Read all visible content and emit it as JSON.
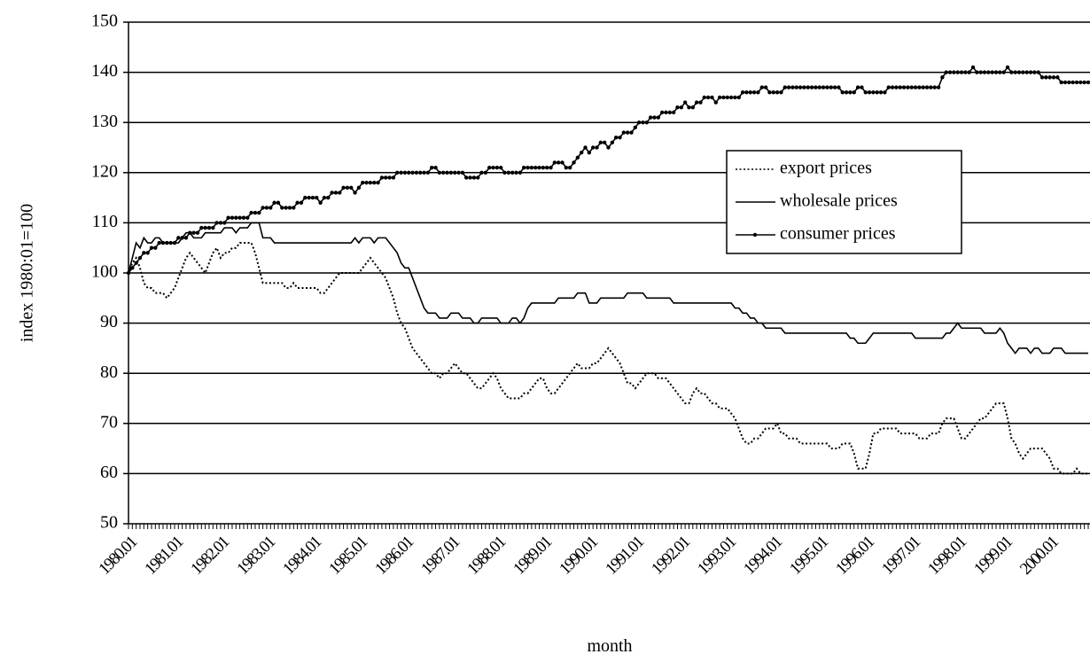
{
  "chart_data": {
    "type": "line",
    "ylabel": "index 1980:01=100",
    "xlabel": "month",
    "categories": [
      "1980.01",
      null,
      null,
      null,
      null,
      null,
      null,
      null,
      null,
      null,
      null,
      null,
      "1981.01",
      null,
      null,
      null,
      null,
      null,
      null,
      null,
      null,
      null,
      null,
      null,
      "1982.01",
      null,
      null,
      null,
      null,
      null,
      null,
      null,
      null,
      null,
      null,
      null,
      "1983.01",
      null,
      null,
      null,
      null,
      null,
      null,
      null,
      null,
      null,
      null,
      null,
      "1984.01",
      null,
      null,
      null,
      null,
      null,
      null,
      null,
      null,
      null,
      null,
      null,
      "1985.01",
      null,
      null,
      null,
      null,
      null,
      null,
      null,
      null,
      null,
      null,
      null,
      "1986.01",
      null,
      null,
      null,
      null,
      null,
      null,
      null,
      null,
      null,
      null,
      null,
      "1987.01",
      null,
      null,
      null,
      null,
      null,
      null,
      null,
      null,
      null,
      null,
      null,
      "1988.01",
      null,
      null,
      null,
      null,
      null,
      null,
      null,
      null,
      null,
      null,
      null,
      "1989.01",
      null,
      null,
      null,
      null,
      null,
      null,
      null,
      null,
      null,
      null,
      null,
      "1990.01",
      null,
      null,
      null,
      null,
      null,
      null,
      null,
      null,
      null,
      null,
      null,
      "1991.01",
      null,
      null,
      null,
      null,
      null,
      null,
      null,
      null,
      null,
      null,
      null,
      "1992.01",
      null,
      null,
      null,
      null,
      null,
      null,
      null,
      null,
      null,
      null,
      null,
      "1993.01",
      null,
      null,
      null,
      null,
      null,
      null,
      null,
      null,
      null,
      null,
      null,
      "1994.01",
      null,
      null,
      null,
      null,
      null,
      null,
      null,
      null,
      null,
      null,
      null,
      "1995.01",
      null,
      null,
      null,
      null,
      null,
      null,
      null,
      null,
      null,
      null,
      null,
      "1996.01",
      null,
      null,
      null,
      null,
      null,
      null,
      null,
      null,
      null,
      null,
      null,
      "1997.01",
      null,
      null,
      null,
      null,
      null,
      null,
      null,
      null,
      null,
      null,
      null,
      "1998.01",
      null,
      null,
      null,
      null,
      null,
      null,
      null,
      null,
      null,
      null,
      null,
      "1999.01",
      null,
      null,
      null,
      null,
      null,
      null,
      null,
      null,
      null,
      null,
      null,
      "2000.01",
      null,
      null,
      null,
      null,
      null,
      null,
      null,
      null,
      null,
      null
    ],
    "series": [
      {
        "name": "export prices",
        "color": "#000000",
        "style": "dotted",
        "values": [
          100,
          102,
          103,
          101,
          98,
          97,
          97,
          96,
          96,
          96,
          95,
          96,
          97,
          99,
          101,
          103,
          104,
          103,
          102,
          101,
          100,
          102,
          104,
          105,
          103,
          104,
          104,
          105,
          105,
          106,
          106,
          106,
          106,
          104,
          101,
          98,
          98,
          98,
          98,
          98,
          98,
          97,
          97,
          98,
          97,
          97,
          97,
          97,
          97,
          97,
          96,
          96,
          97,
          98,
          99,
          100,
          100,
          100,
          100,
          100,
          100,
          101,
          102,
          103,
          102,
          101,
          100,
          99,
          97,
          95,
          92,
          90,
          89,
          87,
          85,
          84,
          83,
          82,
          81,
          80,
          80,
          79,
          80,
          80,
          81,
          82,
          81,
          80,
          80,
          79,
          78,
          77,
          77,
          78,
          79,
          80,
          79,
          77,
          76,
          75,
          75,
          75,
          75,
          76,
          76,
          77,
          78,
          79,
          79,
          77,
          76,
          76,
          77,
          78,
          79,
          80,
          81,
          82,
          81,
          81,
          81,
          82,
          82,
          83,
          84,
          85,
          84,
          83,
          82,
          80,
          78,
          78,
          77,
          78,
          79,
          80,
          80,
          80,
          79,
          79,
          79,
          78,
          77,
          76,
          75,
          74,
          74,
          76,
          77,
          76,
          76,
          75,
          74,
          74,
          73,
          73,
          73,
          72,
          71,
          69,
          67,
          66,
          66,
          67,
          67,
          68,
          69,
          69,
          69,
          70,
          68,
          68,
          67,
          67,
          67,
          66,
          66,
          66,
          66,
          66,
          66,
          66,
          66,
          65,
          65,
          65,
          66,
          66,
          66,
          64,
          61,
          61,
          61,
          64,
          68,
          68,
          69,
          69,
          69,
          69,
          69,
          68,
          68,
          68,
          68,
          68,
          67,
          67,
          67,
          68,
          68,
          68,
          70,
          71,
          71,
          71,
          69,
          67,
          67,
          68,
          69,
          70,
          71,
          71,
          72,
          73,
          74,
          74,
          74,
          71,
          67,
          66,
          64,
          63,
          64,
          65,
          65,
          65,
          65,
          64,
          63,
          61,
          61,
          60,
          60,
          60,
          60,
          61,
          60,
          60,
          60
        ]
      },
      {
        "name": "wholesale prices",
        "color": "#000000",
        "style": "solid",
        "values": [
          100,
          103,
          106,
          105,
          107,
          106,
          106,
          107,
          107,
          106,
          106,
          106,
          106,
          106,
          107,
          108,
          108,
          107,
          107,
          107,
          108,
          108,
          108,
          108,
          108,
          109,
          109,
          109,
          108,
          109,
          109,
          109,
          110,
          110,
          110,
          107,
          107,
          107,
          106,
          106,
          106,
          106,
          106,
          106,
          106,
          106,
          106,
          106,
          106,
          106,
          106,
          106,
          106,
          106,
          106,
          106,
          106,
          106,
          106,
          107,
          106,
          107,
          107,
          107,
          106,
          107,
          107,
          107,
          106,
          105,
          104,
          102,
          101,
          101,
          99,
          97,
          95,
          93,
          92,
          92,
          92,
          91,
          91,
          91,
          92,
          92,
          92,
          91,
          91,
          91,
          90,
          90,
          91,
          91,
          91,
          91,
          91,
          90,
          90,
          90,
          91,
          91,
          90,
          91,
          93,
          94,
          94,
          94,
          94,
          94,
          94,
          94,
          95,
          95,
          95,
          95,
          95,
          96,
          96,
          96,
          94,
          94,
          94,
          95,
          95,
          95,
          95,
          95,
          95,
          95,
          96,
          96,
          96,
          96,
          96,
          95,
          95,
          95,
          95,
          95,
          95,
          95,
          94,
          94,
          94,
          94,
          94,
          94,
          94,
          94,
          94,
          94,
          94,
          94,
          94,
          94,
          94,
          94,
          93,
          93,
          92,
          92,
          91,
          91,
          90,
          90,
          89,
          89,
          89,
          89,
          89,
          88,
          88,
          88,
          88,
          88,
          88,
          88,
          88,
          88,
          88,
          88,
          88,
          88,
          88,
          88,
          88,
          88,
          87,
          87,
          86,
          86,
          86,
          87,
          88,
          88,
          88,
          88,
          88,
          88,
          88,
          88,
          88,
          88,
          88,
          87,
          87,
          87,
          87,
          87,
          87,
          87,
          87,
          88,
          88,
          89,
          90,
          89,
          89,
          89,
          89,
          89,
          89,
          88,
          88,
          88,
          88,
          89,
          88,
          86,
          85,
          84,
          85,
          85,
          85,
          84,
          85,
          85,
          84,
          84,
          84,
          85,
          85,
          85,
          84,
          84,
          84,
          84,
          84,
          84,
          84
        ]
      },
      {
        "name": "consumer prices",
        "color": "#000000",
        "style": "markers",
        "values": [
          100,
          101,
          102,
          103,
          104,
          104,
          105,
          105,
          106,
          106,
          106,
          106,
          106,
          107,
          107,
          107,
          108,
          108,
          108,
          109,
          109,
          109,
          109,
          110,
          110,
          110,
          111,
          111,
          111,
          111,
          111,
          111,
          112,
          112,
          112,
          113,
          113,
          113,
          114,
          114,
          113,
          113,
          113,
          113,
          114,
          114,
          115,
          115,
          115,
          115,
          114,
          115,
          115,
          116,
          116,
          116,
          117,
          117,
          117,
          116,
          117,
          118,
          118,
          118,
          118,
          118,
          119,
          119,
          119,
          119,
          120,
          120,
          120,
          120,
          120,
          120,
          120,
          120,
          120,
          121,
          121,
          120,
          120,
          120,
          120,
          120,
          120,
          120,
          119,
          119,
          119,
          119,
          120,
          120,
          121,
          121,
          121,
          121,
          120,
          120,
          120,
          120,
          120,
          121,
          121,
          121,
          121,
          121,
          121,
          121,
          121,
          122,
          122,
          122,
          121,
          121,
          122,
          123,
          124,
          125,
          124,
          125,
          125,
          126,
          126,
          125,
          126,
          127,
          127,
          128,
          128,
          128,
          129,
          130,
          130,
          130,
          131,
          131,
          131,
          132,
          132,
          132,
          132,
          133,
          133,
          134,
          133,
          133,
          134,
          134,
          135,
          135,
          135,
          134,
          135,
          135,
          135,
          135,
          135,
          135,
          136,
          136,
          136,
          136,
          136,
          137,
          137,
          136,
          136,
          136,
          136,
          137,
          137,
          137,
          137,
          137,
          137,
          137,
          137,
          137,
          137,
          137,
          137,
          137,
          137,
          137,
          136,
          136,
          136,
          136,
          137,
          137,
          136,
          136,
          136,
          136,
          136,
          136,
          137,
          137,
          137,
          137,
          137,
          137,
          137,
          137,
          137,
          137,
          137,
          137,
          137,
          137,
          139,
          140,
          140,
          140,
          140,
          140,
          140,
          140,
          141,
          140,
          140,
          140,
          140,
          140,
          140,
          140,
          140,
          141,
          140,
          140,
          140,
          140,
          140,
          140,
          140,
          140,
          139,
          139,
          139,
          139,
          139,
          138,
          138,
          138,
          138,
          138,
          138,
          138,
          138
        ]
      }
    ],
    "ylim": [
      50,
      150
    ],
    "yticks": [
      50,
      60,
      70,
      80,
      90,
      100,
      110,
      120,
      130,
      140,
      150
    ],
    "grid": true,
    "legend": "right"
  }
}
